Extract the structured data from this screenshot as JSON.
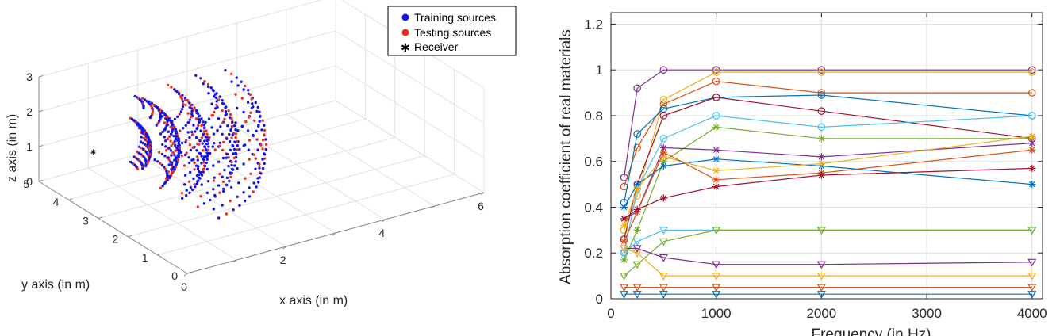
{
  "chart_data": [
    {
      "type": "scatter3d",
      "xlabel": "x axis (in m)",
      "ylabel": "y axis (in m)",
      "zlabel": "z axis (in m)",
      "xlim": [
        0,
        6
      ],
      "ylim": [
        0,
        5
      ],
      "zlim": [
        0,
        3
      ],
      "xticks": [
        "0",
        "2",
        "4",
        "6"
      ],
      "yticks": [
        "0",
        "1",
        "2",
        "3",
        "4",
        "5"
      ],
      "zticks": [
        "0",
        "1",
        "2",
        "3"
      ],
      "grid": true,
      "legend": {
        "position": "top-right",
        "entries": [
          "Training sources",
          "Testing sources",
          "Receiver"
        ]
      },
      "colors": {
        "training": "#1414e6",
        "testing": "#e6321e",
        "receiver": "#333333"
      },
      "receiver": {
        "x": 0.5,
        "y": 4.0,
        "z": 1.2
      },
      "source_shells": {
        "center": {
          "x": 0.5,
          "y": 4.0,
          "z": 1.2
        },
        "radii": [
          1.0,
          1.5,
          2.0,
          2.5,
          3.0
        ],
        "x_range": [
          1.2,
          3.5
        ],
        "y_range": [
          1.0,
          4.5
        ],
        "z_range": [
          0.3,
          2.6
        ]
      }
    },
    {
      "type": "line",
      "xlabel": "Frequency (in Hz)",
      "ylabel": "Absorption coefficient of real materials",
      "xlim": [
        0,
        4100
      ],
      "ylim": [
        0,
        1.25
      ],
      "xticks": [
        "0",
        "1000",
        "2000",
        "3000",
        "4000"
      ],
      "yticks": [
        "0",
        "0.2",
        "0.4",
        "0.6",
        "0.8",
        "1",
        "1.2"
      ],
      "grid": true,
      "x": [
        125,
        250,
        500,
        1000,
        2000,
        4000
      ],
      "series": [
        {
          "marker": "circle",
          "color": "#7e2f8e",
          "values": [
            0.53,
            0.92,
            1.0,
            1.0,
            1.0,
            1.0
          ]
        },
        {
          "marker": "circle",
          "color": "#edb120",
          "values": [
            0.3,
            0.45,
            0.87,
            0.99,
            0.99,
            0.99
          ]
        },
        {
          "marker": "circle",
          "color": "#d95319",
          "values": [
            0.49,
            0.66,
            0.85,
            0.95,
            0.9,
            0.9
          ]
        },
        {
          "marker": "circle",
          "color": "#0072bd",
          "values": [
            0.42,
            0.72,
            0.83,
            0.88,
            0.89,
            0.8
          ]
        },
        {
          "marker": "circle",
          "color": "#a2142f",
          "values": [
            0.26,
            0.5,
            0.8,
            0.88,
            0.82,
            0.7
          ]
        },
        {
          "marker": "circle",
          "color": "#4dbeee",
          "values": [
            0.2,
            0.48,
            0.7,
            0.8,
            0.75,
            0.8
          ]
        },
        {
          "marker": "star",
          "color": "#77ac30",
          "values": [
            0.17,
            0.3,
            0.6,
            0.75,
            0.7,
            0.7
          ]
        },
        {
          "marker": "star",
          "color": "#7e2f8e",
          "values": [
            0.35,
            0.38,
            0.66,
            0.65,
            0.62,
            0.68
          ]
        },
        {
          "marker": "star",
          "color": "#0072bd",
          "values": [
            0.4,
            0.5,
            0.58,
            0.61,
            0.58,
            0.5
          ]
        },
        {
          "marker": "star",
          "color": "#edb120",
          "values": [
            0.32,
            0.48,
            0.62,
            0.56,
            0.59,
            0.71
          ]
        },
        {
          "marker": "star",
          "color": "#d95319",
          "values": [
            0.25,
            0.38,
            0.64,
            0.52,
            0.55,
            0.65
          ]
        },
        {
          "marker": "star",
          "color": "#a2142f",
          "values": [
            0.35,
            0.39,
            0.44,
            0.49,
            0.54,
            0.57
          ]
        },
        {
          "marker": "triangle",
          "color": "#4dbeee",
          "values": [
            0.2,
            0.25,
            0.3,
            0.3,
            0.3,
            0.3
          ]
        },
        {
          "marker": "triangle",
          "color": "#77ac30",
          "values": [
            0.1,
            0.15,
            0.25,
            0.3,
            0.3,
            0.3
          ]
        },
        {
          "marker": "triangle",
          "color": "#7e2f8e",
          "values": [
            0.22,
            0.22,
            0.18,
            0.15,
            0.15,
            0.16
          ]
        },
        {
          "marker": "triangle",
          "color": "#edb120",
          "values": [
            0.22,
            0.2,
            0.1,
            0.1,
            0.1,
            0.1
          ]
        },
        {
          "marker": "triangle",
          "color": "#d95319",
          "values": [
            0.05,
            0.05,
            0.05,
            0.05,
            0.05,
            0.05
          ]
        },
        {
          "marker": "triangle",
          "color": "#0072bd",
          "values": [
            0.02,
            0.02,
            0.02,
            0.02,
            0.02,
            0.02
          ]
        }
      ]
    }
  ]
}
